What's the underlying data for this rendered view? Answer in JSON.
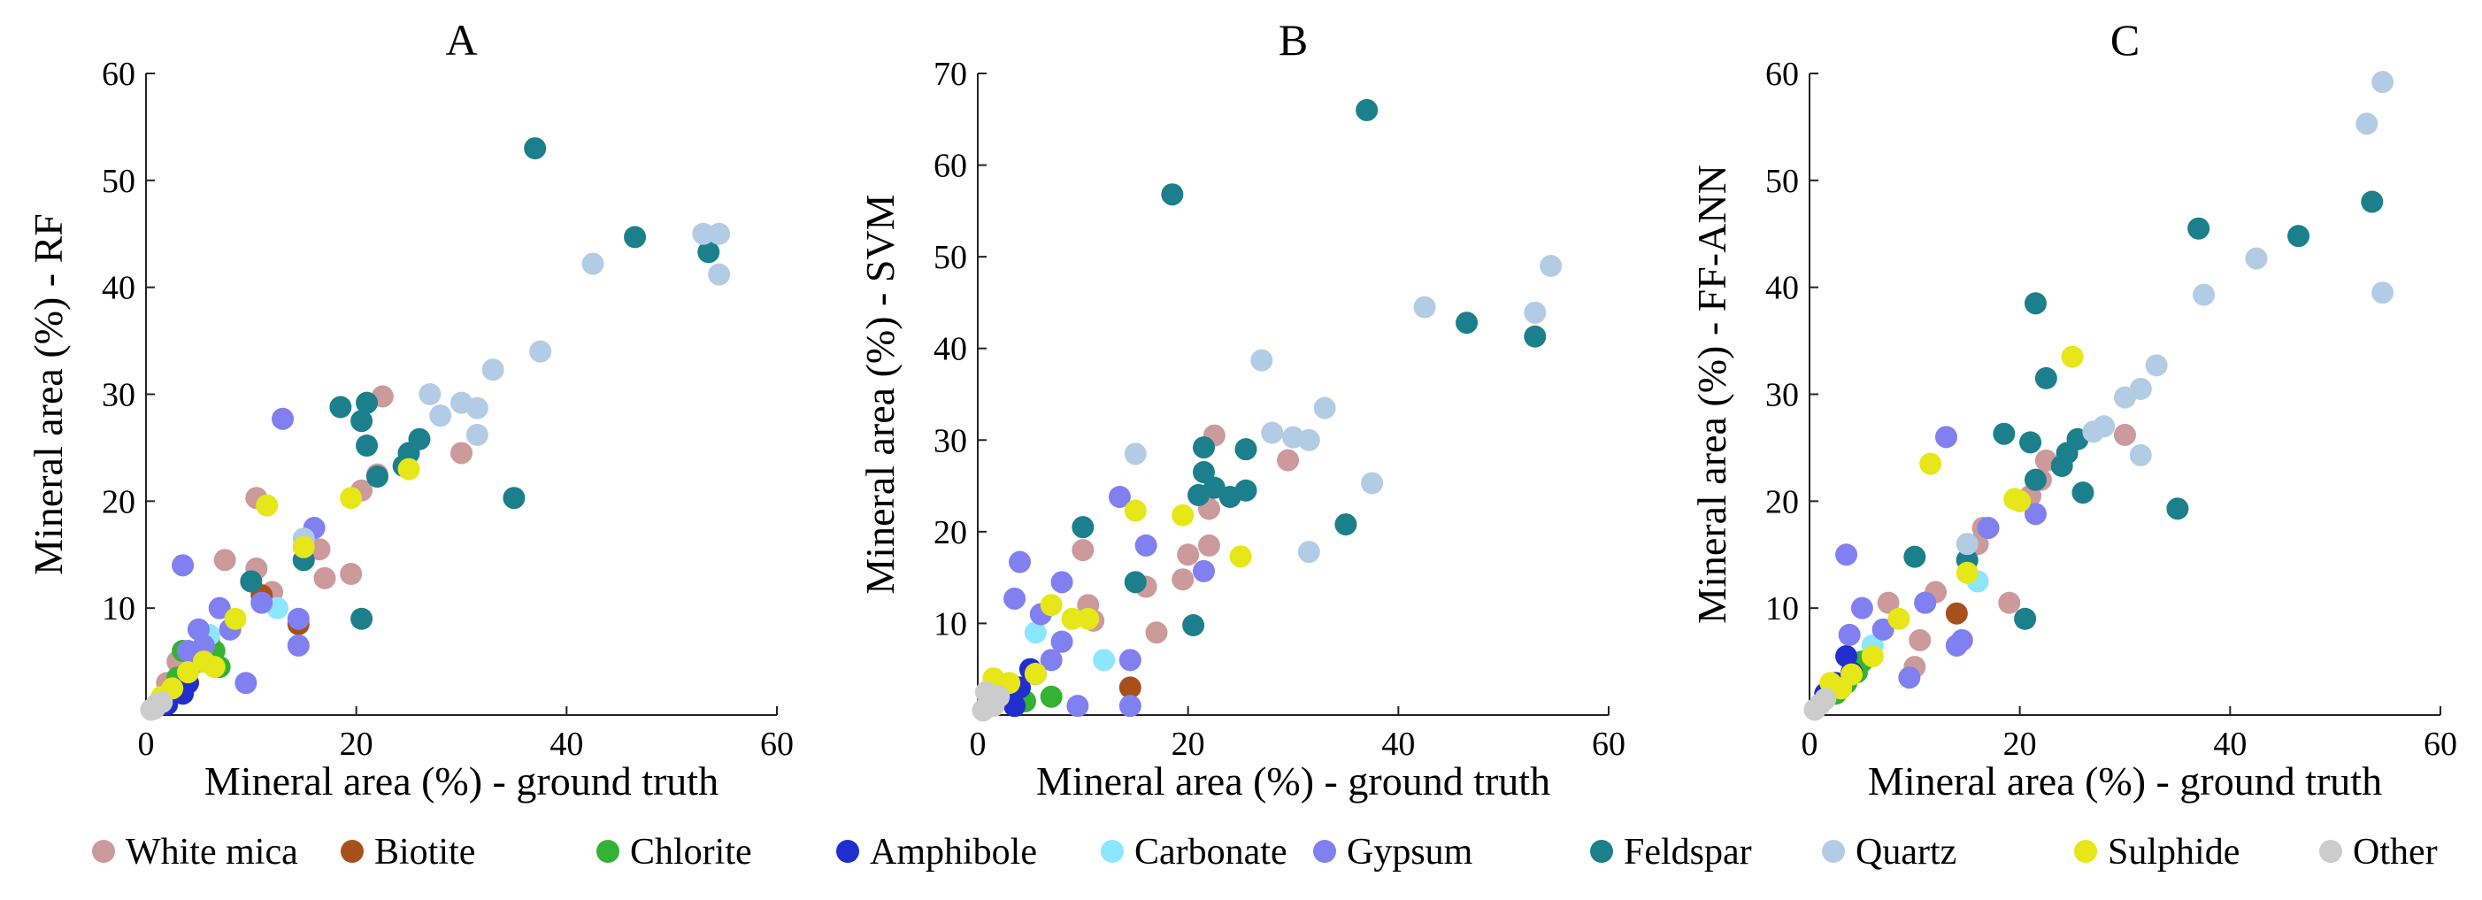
{
  "legend": [
    {
      "label": "White mica",
      "color": "#cc9a9a"
    },
    {
      "label": "Biotite",
      "color": "#a8501c"
    },
    {
      "label": "Chlorite",
      "color": "#33b233"
    },
    {
      "label": "Amphibole",
      "color": "#1f2ecc"
    },
    {
      "label": "Carbonate",
      "color": "#8ce6ff"
    },
    {
      "label": "Gypsum",
      "color": "#8080f0"
    },
    {
      "label": "Feldspar",
      "color": "#1b7f8c"
    },
    {
      "label": "Quartz",
      "color": "#b3cce6"
    },
    {
      "label": "Sulphide",
      "color": "#e6e619"
    },
    {
      "label": "Other",
      "color": "#cccccc"
    }
  ],
  "chart_data": [
    {
      "type": "scatter",
      "title": "A",
      "xlabel": "Mineral area (%) - ground truth",
      "ylabel": "Mineral area (%) - RF",
      "xlim": [
        0,
        60
      ],
      "ylim": [
        0,
        60
      ],
      "xticks": [
        0,
        20,
        40,
        60
      ],
      "yticks": [
        10,
        20,
        30,
        40,
        50,
        60
      ],
      "series": [
        {
          "name": "White mica",
          "points": [
            [
              10.5,
              20.3
            ],
            [
              22.5,
              29.8
            ],
            [
              22,
              22.5
            ],
            [
              20.5,
              21
            ],
            [
              16.5,
              15.5
            ],
            [
              17,
              12.8
            ],
            [
              19.5,
              13.2
            ],
            [
              12,
              11.5
            ],
            [
              7.5,
              14.5
            ],
            [
              10.5,
              13.7
            ],
            [
              30,
              24.5
            ],
            [
              6,
              7
            ],
            [
              3,
              5
            ],
            [
              2,
              3
            ]
          ]
        },
        {
          "name": "Biotite",
          "points": [
            [
              14.5,
              8.5
            ],
            [
              11,
              11.2
            ],
            [
              6,
              6.5
            ]
          ]
        },
        {
          "name": "Chlorite",
          "points": [
            [
              3.5,
              6
            ],
            [
              5,
              5
            ],
            [
              6.5,
              6
            ],
            [
              7,
              4.5
            ],
            [
              3,
              3.5
            ]
          ]
        },
        {
          "name": "Amphibole",
          "points": [
            [
              1.5,
              1.5
            ],
            [
              2.5,
              2.5
            ],
            [
              3.5,
              2
            ],
            [
              4,
              3
            ],
            [
              2,
              1
            ]
          ]
        },
        {
          "name": "Carbonate",
          "points": [
            [
              12.5,
              10
            ],
            [
              15,
              14.5
            ],
            [
              6,
              7.5
            ]
          ]
        },
        {
          "name": "Gypsum",
          "points": [
            [
              13,
              27.7
            ],
            [
              3.5,
              14
            ],
            [
              16,
              17.5
            ],
            [
              14.5,
              9
            ],
            [
              14.5,
              6.5
            ],
            [
              9.5,
              3
            ],
            [
              11,
              10.5
            ],
            [
              7,
              10
            ],
            [
              8,
              8
            ],
            [
              5,
              8
            ],
            [
              4,
              6
            ],
            [
              5.5,
              6.5
            ]
          ]
        },
        {
          "name": "Feldspar",
          "points": [
            [
              37,
              53
            ],
            [
              46.5,
              44.7
            ],
            [
              53.5,
              43.3
            ],
            [
              18.5,
              28.8
            ],
            [
              21,
              29.2
            ],
            [
              20.5,
              27.5
            ],
            [
              21,
              25.2
            ],
            [
              22,
              22.3
            ],
            [
              24.5,
              23.3
            ],
            [
              25,
              24.5
            ],
            [
              26,
              25.8
            ],
            [
              35,
              20.3
            ],
            [
              20.5,
              9
            ],
            [
              10,
              12.5
            ],
            [
              15,
              14.5
            ]
          ]
        },
        {
          "name": "Quartz",
          "points": [
            [
              53,
              45
            ],
            [
              54.5,
              45
            ],
            [
              54.5,
              41.2
            ],
            [
              42.5,
              42.2
            ],
            [
              37.5,
              34
            ],
            [
              33,
              32.3
            ],
            [
              27,
              30
            ],
            [
              30,
              29.2
            ],
            [
              31.5,
              28.7
            ],
            [
              28,
              28
            ],
            [
              31.5,
              26.2
            ],
            [
              15,
              16.5
            ]
          ]
        },
        {
          "name": "Sulphide",
          "points": [
            [
              11.5,
              19.6
            ],
            [
              19.5,
              20.3
            ],
            [
              25,
              23
            ],
            [
              15,
              15.7
            ],
            [
              8.5,
              9
            ],
            [
              5.5,
              5
            ],
            [
              4,
              4
            ],
            [
              2.5,
              2.5
            ],
            [
              1.5,
              1.7
            ],
            [
              6.5,
              4.5
            ]
          ]
        },
        {
          "name": "Other",
          "points": [
            [
              0.5,
              0.5
            ],
            [
              1,
              1
            ],
            [
              1.5,
              1.2
            ],
            [
              0.8,
              0.6
            ]
          ]
        }
      ]
    },
    {
      "type": "scatter",
      "title": "B",
      "xlabel": "Mineral area (%) - ground truth",
      "ylabel": "Mineral area (%) - SVM",
      "xlim": [
        0,
        60
      ],
      "ylim": [
        0,
        70
      ],
      "xticks": [
        0,
        20,
        40,
        60
      ],
      "yticks": [
        10,
        20,
        30,
        40,
        50,
        60,
        70
      ],
      "series": [
        {
          "name": "White mica",
          "points": [
            [
              22.5,
              30.5
            ],
            [
              29.5,
              27.8
            ],
            [
              22,
              22.5
            ],
            [
              22,
              18.5
            ],
            [
              20,
              17.5
            ],
            [
              19.5,
              14.8
            ],
            [
              16,
              14
            ],
            [
              17,
              9
            ],
            [
              10.5,
              12
            ],
            [
              11,
              10.3
            ],
            [
              10,
              18
            ]
          ]
        },
        {
          "name": "Biotite",
          "points": [
            [
              14.5,
              3
            ]
          ]
        },
        {
          "name": "Chlorite",
          "points": [
            [
              7,
              2
            ],
            [
              4.5,
              1.5
            ],
            [
              3.5,
              1
            ]
          ]
        },
        {
          "name": "Amphibole",
          "points": [
            [
              5,
              5
            ],
            [
              4,
              3
            ],
            [
              3.5,
              1
            ],
            [
              5.5,
              4.5
            ],
            [
              3,
              2.5
            ]
          ]
        },
        {
          "name": "Carbonate",
          "points": [
            [
              5.5,
              9
            ],
            [
              12,
              6
            ],
            [
              8,
              8
            ]
          ]
        },
        {
          "name": "Gypsum",
          "points": [
            [
              4,
              16.7
            ],
            [
              3.5,
              12.7
            ],
            [
              8,
              14.5
            ],
            [
              13.5,
              23.8
            ],
            [
              21.5,
              15.7
            ],
            [
              16,
              18.5
            ],
            [
              14.5,
              6
            ],
            [
              9.5,
              1
            ],
            [
              14.5,
              1
            ],
            [
              8,
              8
            ],
            [
              6,
              11
            ],
            [
              7,
              6
            ]
          ]
        },
        {
          "name": "Feldspar",
          "points": [
            [
              37,
              66
            ],
            [
              18.5,
              56.8
            ],
            [
              46.5,
              42.8
            ],
            [
              53,
              41.3
            ],
            [
              21.5,
              29.2
            ],
            [
              25.5,
              29
            ],
            [
              21.5,
              26.5
            ],
            [
              21,
              24
            ],
            [
              22.5,
              24.8
            ],
            [
              24,
              23.8
            ],
            [
              25.5,
              24.5
            ],
            [
              35,
              20.8
            ],
            [
              10,
              20.5
            ],
            [
              15,
              14.5
            ],
            [
              20.5,
              9.8
            ]
          ]
        },
        {
          "name": "Quartz",
          "points": [
            [
              54.5,
              49
            ],
            [
              53,
              43.9
            ],
            [
              42.5,
              44.5
            ],
            [
              27,
              38.7
            ],
            [
              33,
              33.5
            ],
            [
              28,
              30.8
            ],
            [
              30,
              30.3
            ],
            [
              31.5,
              30
            ],
            [
              37.5,
              25.3
            ],
            [
              31.5,
              17.8
            ],
            [
              15,
              28.5
            ]
          ]
        },
        {
          "name": "Sulphide",
          "points": [
            [
              15,
              22.3
            ],
            [
              19.5,
              21.8
            ],
            [
              25,
              17.3
            ],
            [
              7,
              12
            ],
            [
              10.5,
              10.5
            ],
            [
              9,
              10.5
            ],
            [
              5.5,
              4.5
            ],
            [
              3,
              3.5
            ],
            [
              2,
              2.5
            ],
            [
              1.5,
              4
            ]
          ]
        },
        {
          "name": "Other",
          "points": [
            [
              0.5,
              0.5
            ],
            [
              1,
              1.5
            ],
            [
              1.5,
              1
            ],
            [
              0.8,
              2.5
            ],
            [
              2,
              2
            ]
          ]
        }
      ]
    },
    {
      "type": "scatter",
      "title": "C",
      "xlabel": "Mineral area (%) - ground truth",
      "ylabel": "Mineral area (%) - FF-ANN",
      "xlim": [
        0,
        60
      ],
      "ylim": [
        0,
        60
      ],
      "xticks": [
        0,
        20,
        40,
        60
      ],
      "yticks": [
        10,
        20,
        30,
        40,
        50,
        60
      ],
      "series": [
        {
          "name": "White mica",
          "points": [
            [
              30,
              26.2
            ],
            [
              22.5,
              23.8
            ],
            [
              22,
              22
            ],
            [
              21,
              20.5
            ],
            [
              16.5,
              17.5
            ],
            [
              16,
              16
            ],
            [
              19,
              10.5
            ],
            [
              10.5,
              7
            ],
            [
              10,
              4.5
            ],
            [
              12,
              11.5
            ],
            [
              7.5,
              10.5
            ]
          ]
        },
        {
          "name": "Biotite",
          "points": [
            [
              14,
              9.5
            ],
            [
              11,
              10.5
            ]
          ]
        },
        {
          "name": "Chlorite",
          "points": [
            [
              3.5,
              3
            ],
            [
              4.5,
              4
            ],
            [
              5,
              5
            ],
            [
              2.5,
              2
            ]
          ]
        },
        {
          "name": "Amphibole",
          "points": [
            [
              3.5,
              5.5
            ],
            [
              2.5,
              3
            ],
            [
              1.5,
              2
            ],
            [
              4,
              4
            ]
          ]
        },
        {
          "name": "Carbonate",
          "points": [
            [
              16,
              12.5
            ],
            [
              7,
              8
            ],
            [
              6,
              6.5
            ]
          ]
        },
        {
          "name": "Gypsum",
          "points": [
            [
              13,
              26
            ],
            [
              3.5,
              15
            ],
            [
              17,
              17.5
            ],
            [
              21.5,
              18.8
            ],
            [
              14.5,
              7
            ],
            [
              14,
              6.5
            ],
            [
              9.5,
              3.5
            ],
            [
              5,
              10
            ],
            [
              11,
              10.5
            ],
            [
              3.8,
              7.5
            ],
            [
              7,
              8
            ]
          ]
        },
        {
          "name": "Feldspar",
          "points": [
            [
              37,
              45.5
            ],
            [
              46.5,
              44.8
            ],
            [
              53.5,
              48
            ],
            [
              21.5,
              38.5
            ],
            [
              22.5,
              31.5
            ],
            [
              18.5,
              26.3
            ],
            [
              21,
              25.5
            ],
            [
              25.5,
              25.8
            ],
            [
              24.5,
              24.5
            ],
            [
              24,
              23.3
            ],
            [
              21.5,
              22
            ],
            [
              26,
              20.8
            ],
            [
              35,
              19.3
            ],
            [
              20.5,
              9
            ],
            [
              10,
              14.8
            ],
            [
              15,
              14.5
            ]
          ]
        },
        {
          "name": "Quartz",
          "points": [
            [
              54.5,
              59.2
            ],
            [
              53,
              55.3
            ],
            [
              42.5,
              42.7
            ],
            [
              54.5,
              39.5
            ],
            [
              37.5,
              39.3
            ],
            [
              33,
              32.7
            ],
            [
              31.5,
              30.5
            ],
            [
              30,
              29.7
            ],
            [
              28,
              27
            ],
            [
              27,
              26.5
            ],
            [
              31.5,
              24.3
            ],
            [
              15,
              16
            ]
          ]
        },
        {
          "name": "Sulphide",
          "points": [
            [
              25,
              33.5
            ],
            [
              11.5,
              23.5
            ],
            [
              19.5,
              20.2
            ],
            [
              20,
              20
            ],
            [
              15,
              13.3
            ],
            [
              8.5,
              9
            ],
            [
              6,
              5.5
            ],
            [
              4,
              3.8
            ],
            [
              2,
              3
            ],
            [
              3,
              2.5
            ]
          ]
        },
        {
          "name": "Other",
          "points": [
            [
              0.5,
              0.5
            ],
            [
              1,
              1
            ],
            [
              1.5,
              1.5
            ]
          ]
        }
      ]
    }
  ]
}
